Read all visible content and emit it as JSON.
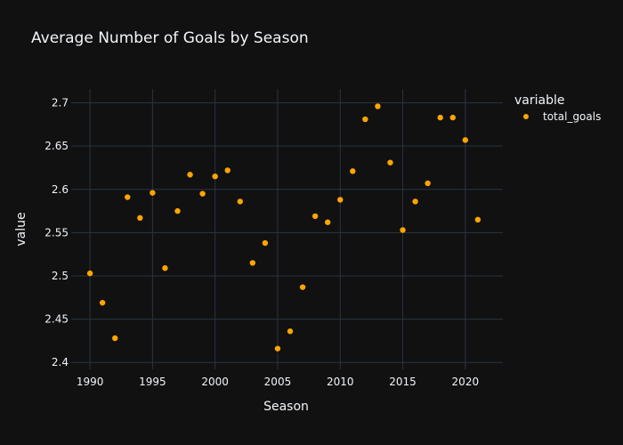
{
  "chart_data": {
    "type": "scatter",
    "title": "Average Number of Goals by Season",
    "xlabel": "Season",
    "ylabel": "value",
    "xlim": [
      1988.5,
      2023
    ],
    "ylim": [
      2.392,
      2.716
    ],
    "xticks": [
      1990,
      1995,
      2000,
      2005,
      2010,
      2015,
      2020
    ],
    "yticks": [
      2.4,
      2.45,
      2.5,
      2.55,
      2.6,
      2.65,
      2.7
    ],
    "ytick_labels": [
      "2.4",
      "2.45",
      "2.5",
      "2.55",
      "2.6",
      "2.65",
      "2.7"
    ],
    "grid": true,
    "legend": {
      "title": "variable",
      "position": "top-right"
    },
    "series": [
      {
        "name": "total_goals",
        "color": "#FFA500",
        "x": [
          1990,
          1991,
          1992,
          1993,
          1994,
          1995,
          1996,
          1997,
          1998,
          1999,
          2000,
          2001,
          2002,
          2003,
          2004,
          2005,
          2006,
          2007,
          2008,
          2009,
          2010,
          2011,
          2012,
          2013,
          2014,
          2015,
          2016,
          2017,
          2018,
          2019,
          2020,
          2021
        ],
        "y": [
          2.503,
          2.469,
          2.428,
          2.591,
          2.567,
          2.596,
          2.509,
          2.575,
          2.617,
          2.595,
          2.615,
          2.622,
          2.586,
          2.515,
          2.538,
          2.416,
          2.436,
          2.487,
          2.569,
          2.562,
          2.588,
          2.621,
          2.681,
          2.696,
          2.631,
          2.553,
          2.586,
          2.607,
          2.683,
          2.683,
          2.657,
          2.565
        ]
      }
    ]
  },
  "colors": {
    "background": "#111111",
    "grid": "#283442",
    "text": "#f2f5fa"
  }
}
